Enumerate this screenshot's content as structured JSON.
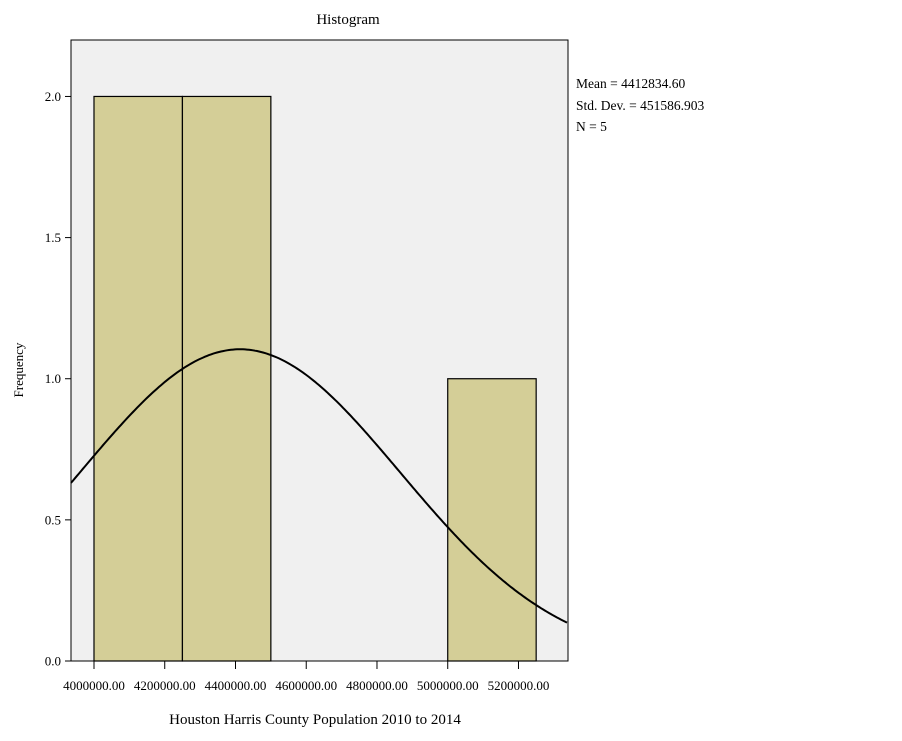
{
  "chart_data": {
    "type": "bar",
    "title": "Histogram",
    "xlabel": "Houston Harris County Population 2010 to 2014",
    "ylabel": "Frequency",
    "xlim": [
      3935000,
      5340000
    ],
    "ylim": [
      0,
      2.2
    ],
    "x_ticks": [
      4000000,
      4200000,
      4400000,
      4600000,
      4800000,
      5000000,
      5200000
    ],
    "x_tick_labels": [
      "4000000.00",
      "4200000.00",
      "4400000.00",
      "4600000.00",
      "4800000.00",
      "5000000.00",
      "5200000.00"
    ],
    "y_ticks": [
      0,
      0.5,
      1.0,
      1.5,
      2.0
    ],
    "y_tick_labels": [
      "0.0",
      "0.5",
      "1.0",
      "1.5",
      "2.0"
    ],
    "bins": [
      {
        "start": 4000000,
        "end": 4250000,
        "count": 2
      },
      {
        "start": 4250000,
        "end": 4500000,
        "count": 2
      },
      {
        "start": 4750000,
        "end": 5000000,
        "count": 0
      },
      {
        "start": 5000000,
        "end": 5250000,
        "count": 1
      }
    ],
    "normal_curve": {
      "mean": 4412834.6,
      "std": 451586.903,
      "n": 5,
      "bin_width": 250000
    },
    "grid": false,
    "colors": {
      "bar_fill": "#d4ce97",
      "bar_stroke": "#000000",
      "plot_background": "#f0f0f0",
      "curve": "#000000"
    }
  },
  "stats": {
    "mean": "Mean = 4412834.60",
    "std": "Std. Dev. = 451586.903",
    "n": "N = 5"
  }
}
